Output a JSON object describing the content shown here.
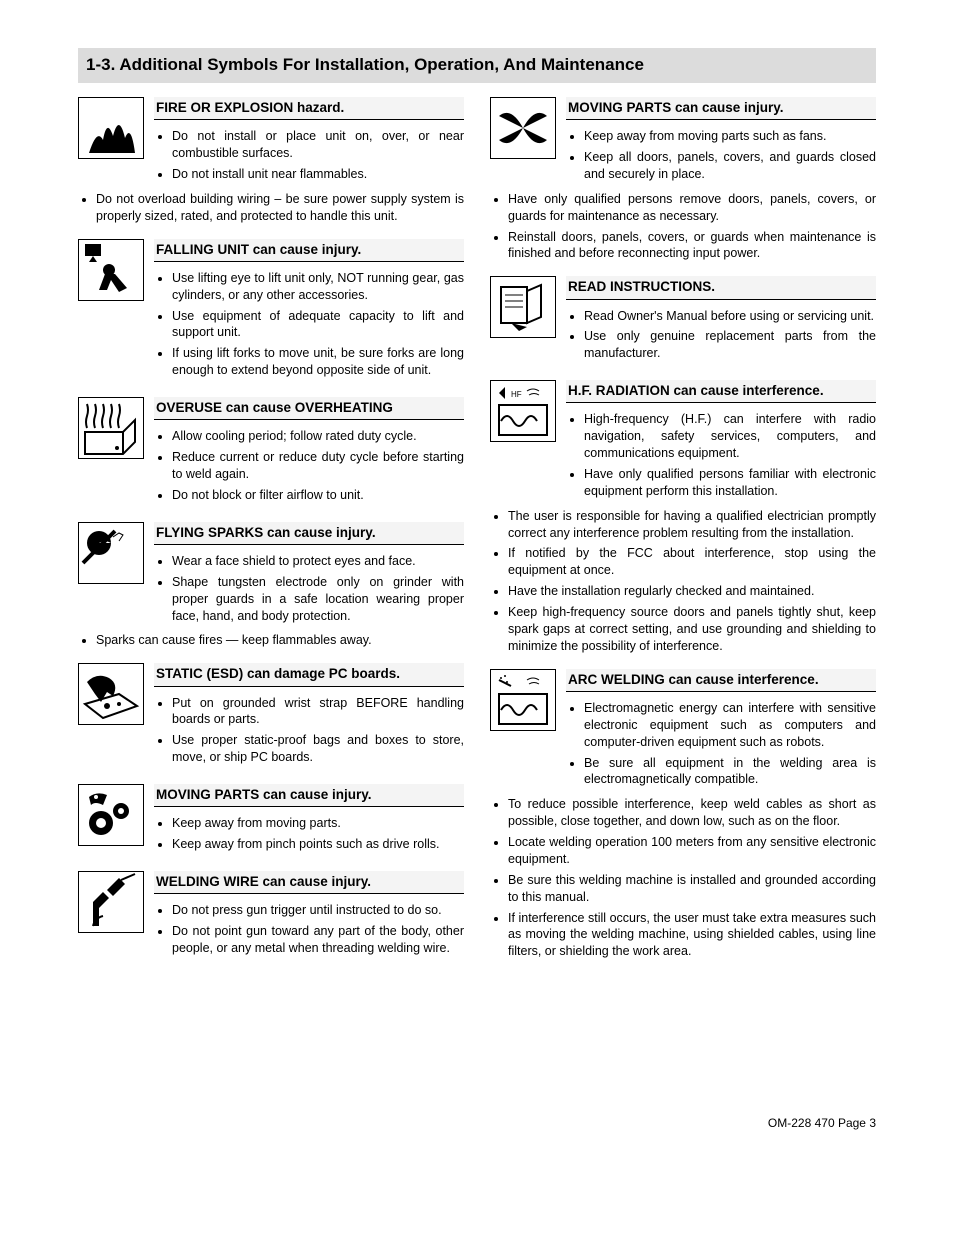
{
  "section_title": "1-3.   Additional Symbols For Installation, Operation, And Maintenance",
  "footer": "OM-228 470 Page 3",
  "left": [
    {
      "title": "FIRE OR EXPLOSION hazard.",
      "icon": "fire-icon",
      "items": [
        "Do not install or place unit on, over, or near combustible surfaces.",
        "Do not install unit near flammables."
      ],
      "outdent": [
        "Do not overload building wiring – be sure power supply system is properly sized, rated, and protected to handle this unit."
      ]
    },
    {
      "title": "FALLING UNIT can cause injury.",
      "icon": "falling-icon",
      "items": [
        "Use lifting eye to lift unit only, NOT running gear, gas cylinders, or any other accessories.",
        "Use equipment of adequate capacity to lift and support unit.",
        "If using lift forks to move unit, be sure forks are long enough to extend beyond opposite side of unit."
      ]
    },
    {
      "title": "OVERUSE can cause OVERHEATING",
      "icon": "overheat-icon",
      "items": [
        "Allow cooling period; follow rated duty cycle.",
        "Reduce current or reduce duty cycle before starting to weld again.",
        "Do not block or filter airflow to unit."
      ]
    },
    {
      "title": "FLYING SPARKS can cause injury.",
      "icon": "sparks-icon",
      "items": [
        "Wear a face shield to protect eyes and face.",
        "Shape tungsten electrode only on grinder with proper guards in a safe location wearing proper face, hand, and body protection."
      ],
      "outdent": [
        "Sparks can cause fires — keep flammables away."
      ]
    },
    {
      "title": "STATIC (ESD) can damage PC  boards.",
      "icon": "esd-icon",
      "items": [
        "Put on grounded wrist strap BEFORE handling boards or parts.",
        "Use proper static-proof bags and boxes to store, move, or ship PC boards."
      ]
    },
    {
      "title": "MOVING PARTS can cause injury.",
      "icon": "gears-icon",
      "items": [
        "Keep away from moving parts.",
        "Keep away from pinch points such as drive rolls."
      ]
    },
    {
      "title": "WELDING WIRE can cause injury.",
      "icon": "wire-icon",
      "items": [
        "Do not press gun trigger until instructed to do so.",
        "Do not point gun toward any part of the body, other people, or any metal when threading welding wire."
      ]
    }
  ],
  "right": [
    {
      "title": "MOVING PARTS can cause injury.",
      "icon": "fan-icon",
      "items": [
        "Keep away from moving parts such as fans.",
        "Keep all doors, panels, covers, and guards closed and securely in place."
      ],
      "outdent": [
        "Have only qualified persons remove doors, panels, covers, or guards for maintenance as necessary.",
        "Reinstall doors, panels, covers, or guards when maintenance is finished and before reconnecting input power."
      ]
    },
    {
      "title": "READ INSTRUCTIONS.",
      "icon": "manual-icon",
      "items": [
        "Read Owner's Manual before using or servicing unit.",
        "Use only genuine replacement parts from the manufacturer."
      ]
    },
    {
      "title": "H.F. RADIATION can cause interference.",
      "icon": "hf-icon",
      "items": [
        "High-frequency (H.F.) can interfere with radio navigation, safety services, computers, and communications equipment.",
        "Have only qualified persons familiar with electronic equipment perform this installation."
      ],
      "outdent": [
        "The user is responsible for having a qualified electrician promptly correct any interference problem resulting from the installation.",
        "If notified by the FCC about interference, stop using the equipment at once.",
        "Have the installation regularly checked and maintained.",
        "Keep high-frequency source doors and panels tightly shut, keep spark gaps at correct setting, and use grounding and shielding to minimize the possibility of interference."
      ]
    },
    {
      "title": "ARC WELDING can cause interference.",
      "icon": "arc-icon",
      "items": [
        "Electromagnetic energy can interfere with sensitive electronic equipment such as computers and computer-driven equipment such as robots.",
        "Be sure all equipment in the welding area is electromagnetically compatible."
      ],
      "outdent": [
        "To reduce possible interference, keep weld cables as short as possible, close together, and down low, such as on the floor.",
        "Locate welding operation  100 meters from any sensitive electronic equipment.",
        "Be sure this welding machine is installed and grounded according to this manual.",
        "If interference still occurs, the user must take extra measures such as moving the welding machine, using shielded cables, using line filters, or shielding the work area."
      ]
    }
  ]
}
